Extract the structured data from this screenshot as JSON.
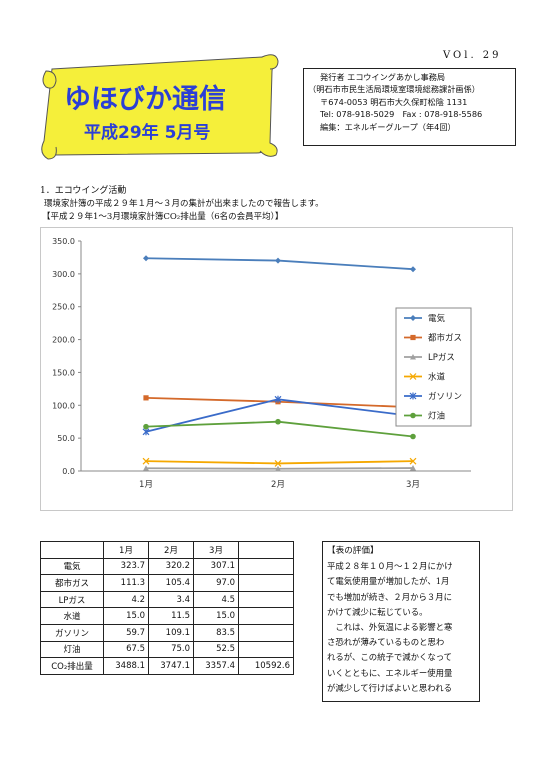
{
  "header": {
    "volume": "VOl. 29",
    "title": "ゆほびか通信",
    "issue": "平成29年 5月号"
  },
  "publisher": {
    "line1": "発行者 エコウイングあかし事務局",
    "line2": "（明石市市民生活局環境室環境総務課計画係）",
    "line3": "〒674-0053 明石市大久保町松陰 1131",
    "line4": "Tel: 078-918-5029　Fax : 078-918-5586",
    "line5": "編集：エネルギーグループ（年4回）"
  },
  "article": {
    "heading": "1．エコウイング活動",
    "intro": "環境家計簿の平成２９年１月～３月の集計が出来ましたので報告します。",
    "caption": "【平成２９年1～3月環境家計簿CO₂排出量（6名の会員平均）】"
  },
  "chart_data": {
    "type": "line",
    "categories": [
      "1月",
      "2月",
      "3月"
    ],
    "series": [
      {
        "name": "電気",
        "values": [
          323.7,
          320.2,
          307.1
        ],
        "color": "#4a7ebb"
      },
      {
        "name": "都市ガス",
        "values": [
          111.3,
          105.4,
          97.0
        ],
        "color": "#d4692a"
      },
      {
        "name": "LPガス",
        "values": [
          4.2,
          3.4,
          4.5
        ],
        "color": "#a0a0a0"
      },
      {
        "name": "水道",
        "values": [
          15.0,
          11.5,
          15.0
        ],
        "color": "#f5a800"
      },
      {
        "name": "ガソリン",
        "values": [
          59.7,
          109.1,
          83.5
        ],
        "color": "#3a6bc9"
      },
      {
        "name": "灯油",
        "values": [
          67.5,
          75.0,
          52.5
        ],
        "color": "#5ea03c"
      }
    ],
    "ylim": [
      0,
      350
    ],
    "yticks": [
      "0.0",
      "50.0",
      "100.0",
      "150.0",
      "200.0",
      "250.0",
      "300.0",
      "350.0"
    ],
    "grid": false,
    "legend": "right"
  },
  "table": {
    "headers": [
      "",
      "1月",
      "2月",
      "3月",
      ""
    ],
    "rows": [
      {
        "label": "電気",
        "v": [
          "323.7",
          "320.2",
          "307.1"
        ],
        "total": ""
      },
      {
        "label": "都市ガス",
        "v": [
          "111.3",
          "105.4",
          "97.0"
        ],
        "total": ""
      },
      {
        "label": "LPガス",
        "v": [
          "4.2",
          "3.4",
          "4.5"
        ],
        "total": ""
      },
      {
        "label": "水道",
        "v": [
          "15.0",
          "11.5",
          "15.0"
        ],
        "total": ""
      },
      {
        "label": "ガソリン",
        "v": [
          "59.7",
          "109.1",
          "83.5"
        ],
        "total": ""
      },
      {
        "label": "灯油",
        "v": [
          "67.5",
          "75.0",
          "52.5"
        ],
        "total": ""
      },
      {
        "label": "CO₂排出量",
        "v": [
          "3488.1",
          "3747.1",
          "3357.4"
        ],
        "total": "10592.6"
      }
    ]
  },
  "evaluation": {
    "heading": "【表の評価】",
    "lines": [
      "平成２８年１０月～１２月にかけ",
      "て電気使用量が増加したが、1月",
      "でも増加が続き、２月から３月に",
      "かけて減少に転じている。",
      "　これは、外気温による影響と寒",
      "さ恐れが薄みているものと思わ",
      "れるが、この統子で減かくなって",
      "いくとともに、エネルギー使用量",
      "が減少して行けばよいと思われる"
    ]
  }
}
